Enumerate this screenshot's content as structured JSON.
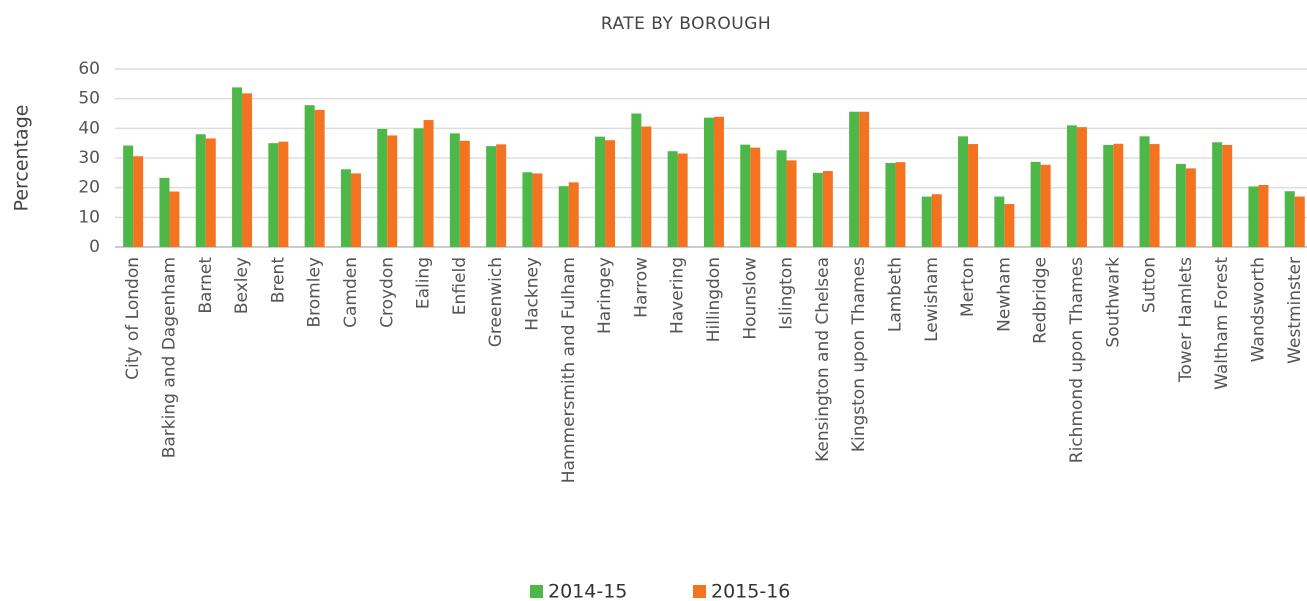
{
  "chart_data": {
    "type": "bar",
    "title": "RATE BY BOROUGH",
    "y_label": "Percentage",
    "categories": [
      "City of London",
      "Barking and Dagenham",
      "Barnet",
      "Bexley",
      "Brent",
      "Bromley",
      "Camden",
      "Croydon",
      "Ealing",
      "Enfield",
      "Greenwich",
      "Hackney",
      "Hammersmith and Fulham",
      "Haringey",
      "Harrow",
      "Havering",
      "Hillingdon",
      "Hounslow",
      "Islington",
      "Kensington and Chelsea",
      "Kingston upon Thames",
      "Lambeth",
      "Lewisham",
      "Merton",
      "Newham",
      "Redbridge",
      "Richmond upon Thames",
      "Southwark",
      "Sutton",
      "Tower Hamlets",
      "Waltham Forest",
      "Wandsworth",
      "Westminster"
    ],
    "series": [
      {
        "name": "2014-15",
        "color": "#4db848",
        "values": [
          34.2,
          23.3,
          38,
          53.8,
          35,
          47.8,
          26.2,
          39.8,
          40,
          38.3,
          34,
          25.2,
          20.5,
          37.2,
          45,
          32.3,
          43.6,
          34.5,
          32.6,
          25,
          45.6,
          28.3,
          17,
          37.3,
          17,
          28.7,
          41,
          34.4,
          37.3,
          28,
          35.3,
          20.4,
          18.8
        ]
      },
      {
        "name": "2015-16",
        "color": "#f47321",
        "values": [
          30.6,
          18.7,
          36.6,
          51.8,
          35.5,
          46.2,
          24.8,
          37.6,
          42.8,
          35.8,
          34.6,
          24.8,
          21.8,
          36,
          40.6,
          31.5,
          43.9,
          33.5,
          29.2,
          25.6,
          45.6,
          28.6,
          17.8,
          34.7,
          14.5,
          27.7,
          40.4,
          34.8,
          34.7,
          26.5,
          34.4,
          20.9,
          17
        ]
      }
    ],
    "ylim": [
      0,
      60
    ],
    "yticks": [
      0,
      10,
      20,
      30,
      40,
      50,
      60
    ],
    "grid": true,
    "legend": "bottom"
  }
}
